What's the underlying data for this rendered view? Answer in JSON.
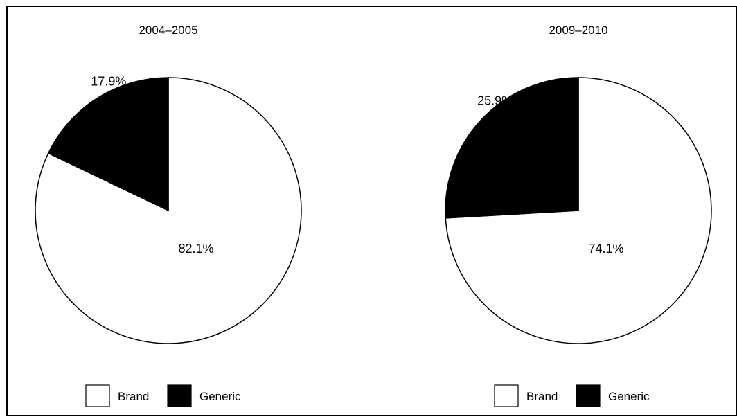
{
  "chart_data": [
    {
      "type": "pie",
      "title": "2004–2005",
      "categories": [
        "Brand",
        "Generic"
      ],
      "values": [
        82.1,
        17.9
      ],
      "labels": [
        "82.1%",
        "17.9%"
      ],
      "colors": [
        "#ffffff",
        "#000000"
      ],
      "start": "12 o'clock, clockwise",
      "legend": {
        "position": "bottom",
        "entries": [
          {
            "label": "Brand",
            "color": "#ffffff"
          },
          {
            "label": "Generic",
            "color": "#000000"
          }
        ]
      }
    },
    {
      "type": "pie",
      "title": "2009–2010",
      "categories": [
        "Brand",
        "Generic"
      ],
      "values": [
        74.1,
        25.9
      ],
      "labels": [
        "74.1%",
        "25.9%"
      ],
      "colors": [
        "#ffffff",
        "#000000"
      ],
      "start": "12 o'clock, clockwise",
      "legend": {
        "position": "bottom",
        "entries": [
          {
            "label": "Brand",
            "color": "#ffffff"
          },
          {
            "label": "Generic",
            "color": "#000000"
          }
        ]
      }
    }
  ]
}
